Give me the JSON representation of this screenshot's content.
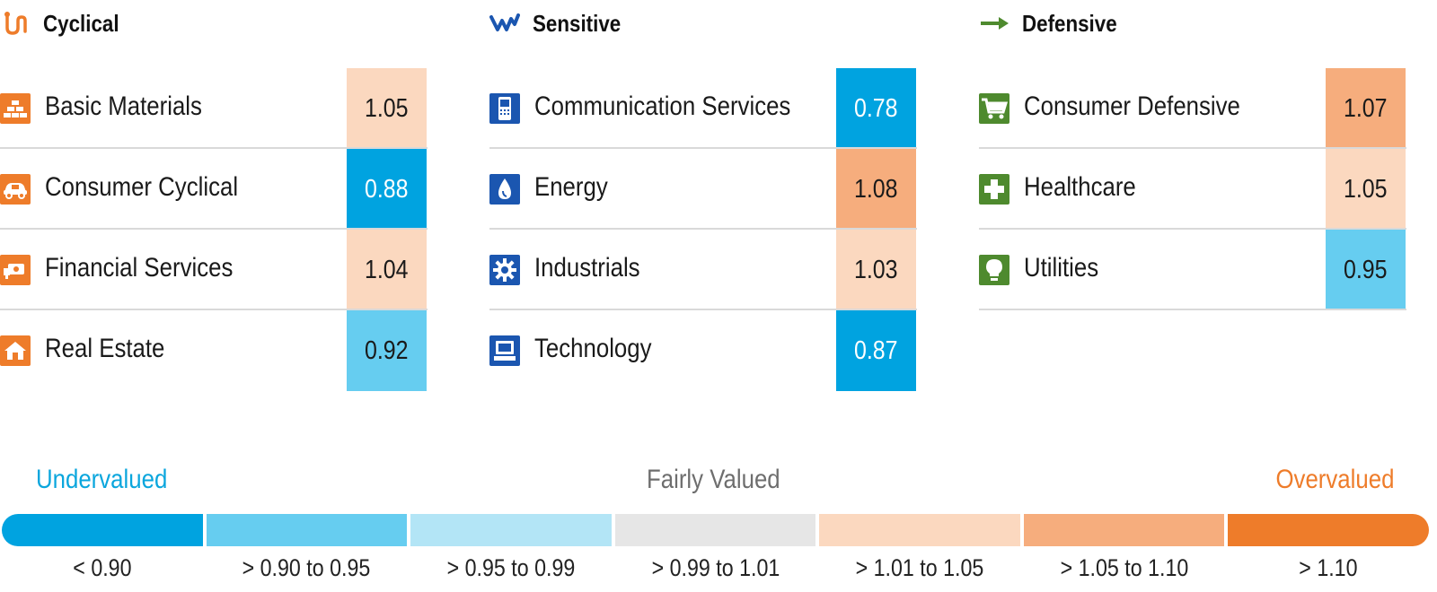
{
  "chart_data": {
    "type": "table",
    "groups": [
      {
        "name": "Cyclical",
        "icon": "cyclical-icon",
        "color": "#ee7c2a",
        "sectors": [
          {
            "name": "Basic Materials",
            "icon": "basic-materials-icon",
            "value": "1.05"
          },
          {
            "name": "Consumer Cyclical",
            "icon": "consumer-cyclical-icon",
            "value": "0.88"
          },
          {
            "name": "Financial Services",
            "icon": "financial-services-icon",
            "value": "1.04"
          },
          {
            "name": "Real Estate",
            "icon": "real-estate-icon",
            "value": "0.92"
          }
        ]
      },
      {
        "name": "Sensitive",
        "icon": "sensitive-icon",
        "color": "#1b56b0",
        "sectors": [
          {
            "name": "Communication Services",
            "icon": "communication-services-icon",
            "value": "0.78"
          },
          {
            "name": "Energy",
            "icon": "energy-icon",
            "value": "1.08"
          },
          {
            "name": "Industrials",
            "icon": "industrials-icon",
            "value": "1.03"
          },
          {
            "name": "Technology",
            "icon": "technology-icon",
            "value": "0.87"
          }
        ]
      },
      {
        "name": "Defensive",
        "icon": "defensive-icon",
        "color": "#4e8a2e",
        "sectors": [
          {
            "name": "Consumer Defensive",
            "icon": "consumer-defensive-icon",
            "value": "1.07"
          },
          {
            "name": "Healthcare",
            "icon": "healthcare-icon",
            "value": "1.05"
          },
          {
            "name": "Utilities",
            "icon": "utilities-icon",
            "value": "0.95"
          }
        ]
      }
    ],
    "legend": {
      "undervalued_label": "Undervalued",
      "fairly_valued_label": "Fairly Valued",
      "overvalued_label": "Overvalued",
      "bins": [
        {
          "label": "< 0.90",
          "min": null,
          "max": 0.9,
          "color": "#00a3e0"
        },
        {
          "label": "> 0.90 to 0.95",
          "min": 0.9,
          "max": 0.95,
          "color": "#66cdf0"
        },
        {
          "label": "> 0.95 to 0.99",
          "min": 0.95,
          "max": 0.99,
          "color": "#b3e5f6"
        },
        {
          "label": "> 0.99 to 1.01",
          "min": 0.99,
          "max": 1.01,
          "color": "#e6e6e6"
        },
        {
          "label": "> 1.01 to 1.05",
          "min": 1.01,
          "max": 1.05,
          "color": "#fbd8bf"
        },
        {
          "label": "> 1.05 to 1.10",
          "min": 1.05,
          "max": 1.1,
          "color": "#f6ad7d"
        },
        {
          "label": "> 1.10",
          "min": 1.1,
          "max": null,
          "color": "#ee7c2a"
        }
      ]
    }
  }
}
